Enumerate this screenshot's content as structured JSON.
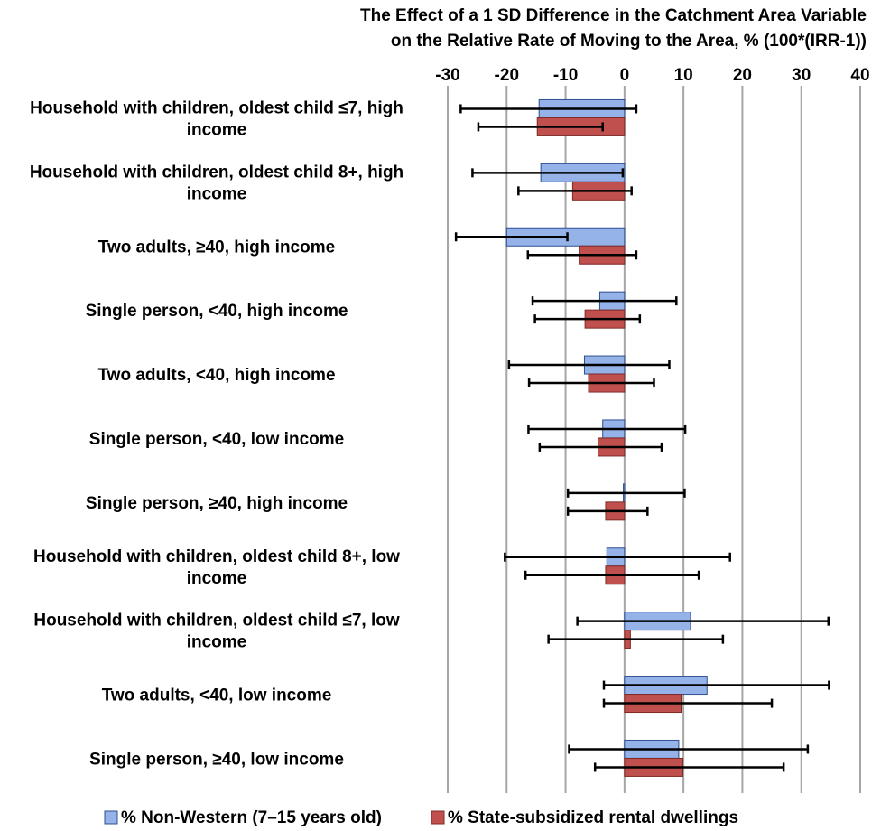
{
  "chart_data": {
    "type": "bar",
    "orientation": "horizontal",
    "title": [
      "The Effect of a 1 SD Difference in the Catchment Area Variable",
      "on the Relative Rate of Moving to the Area, % (100*(IRR-1))"
    ],
    "xlabel": "",
    "ylabel": "",
    "xlim": [
      -30,
      40
    ],
    "xticks": [
      "-30",
      "-20",
      "-10",
      "0",
      "10",
      "20",
      "30",
      "40"
    ],
    "grid": true,
    "legend_position": "bottom",
    "categories": [
      [
        "Household with children, oldest child ≤7, high",
        "income"
      ],
      [
        "Household with children, oldest child 8+, high",
        "income"
      ],
      [
        "Two adults, ≥40, high income"
      ],
      [
        "Single person, <40, high income"
      ],
      [
        "Two adults, <40, high income"
      ],
      [
        "Single person, <40, low income"
      ],
      [
        "Single person, ≥40, high income"
      ],
      [
        "Household with children, oldest child 8+, low",
        "income"
      ],
      [
        "Household with children, oldest child ≤7, low",
        "income"
      ],
      [
        "Two adults, <40, low income"
      ],
      [
        "Single person, ≥40, low income"
      ]
    ],
    "series": [
      {
        "name": "% Non-Western (7–15 years old)",
        "color": "#95b3e8",
        "stroke": "#2f4f8f",
        "values": [
          -14.5,
          -14.2,
          -20.0,
          -4.2,
          -6.8,
          -3.7,
          -0.2,
          -3.0,
          11.2,
          14.0,
          9.2
        ],
        "err_low": [
          -27.8,
          -25.8,
          -28.6,
          -15.6,
          -19.6,
          -16.3,
          -9.6,
          -20.3,
          -8.0,
          -3.5,
          -9.4
        ],
        "err_high": [
          2.0,
          -0.3,
          -9.7,
          8.8,
          7.6,
          10.3,
          10.2,
          17.9,
          34.6,
          34.7,
          31.1
        ]
      },
      {
        "name": "% State-subsidized rental dwellings",
        "color": "#c0504d",
        "stroke": "#7f2a27",
        "values": [
          -14.8,
          -8.8,
          -7.7,
          -6.7,
          -6.1,
          -4.5,
          -3.2,
          -3.2,
          1.0,
          9.6,
          9.9
        ],
        "err_low": [
          -24.8,
          -18.0,
          -16.4,
          -15.2,
          -16.2,
          -14.4,
          -9.6,
          -16.8,
          -12.9,
          -3.5,
          -5.0
        ],
        "err_high": [
          -3.7,
          1.2,
          2.0,
          2.6,
          5.0,
          6.3,
          3.9,
          12.6,
          16.7,
          25.0,
          27.0
        ]
      }
    ]
  }
}
